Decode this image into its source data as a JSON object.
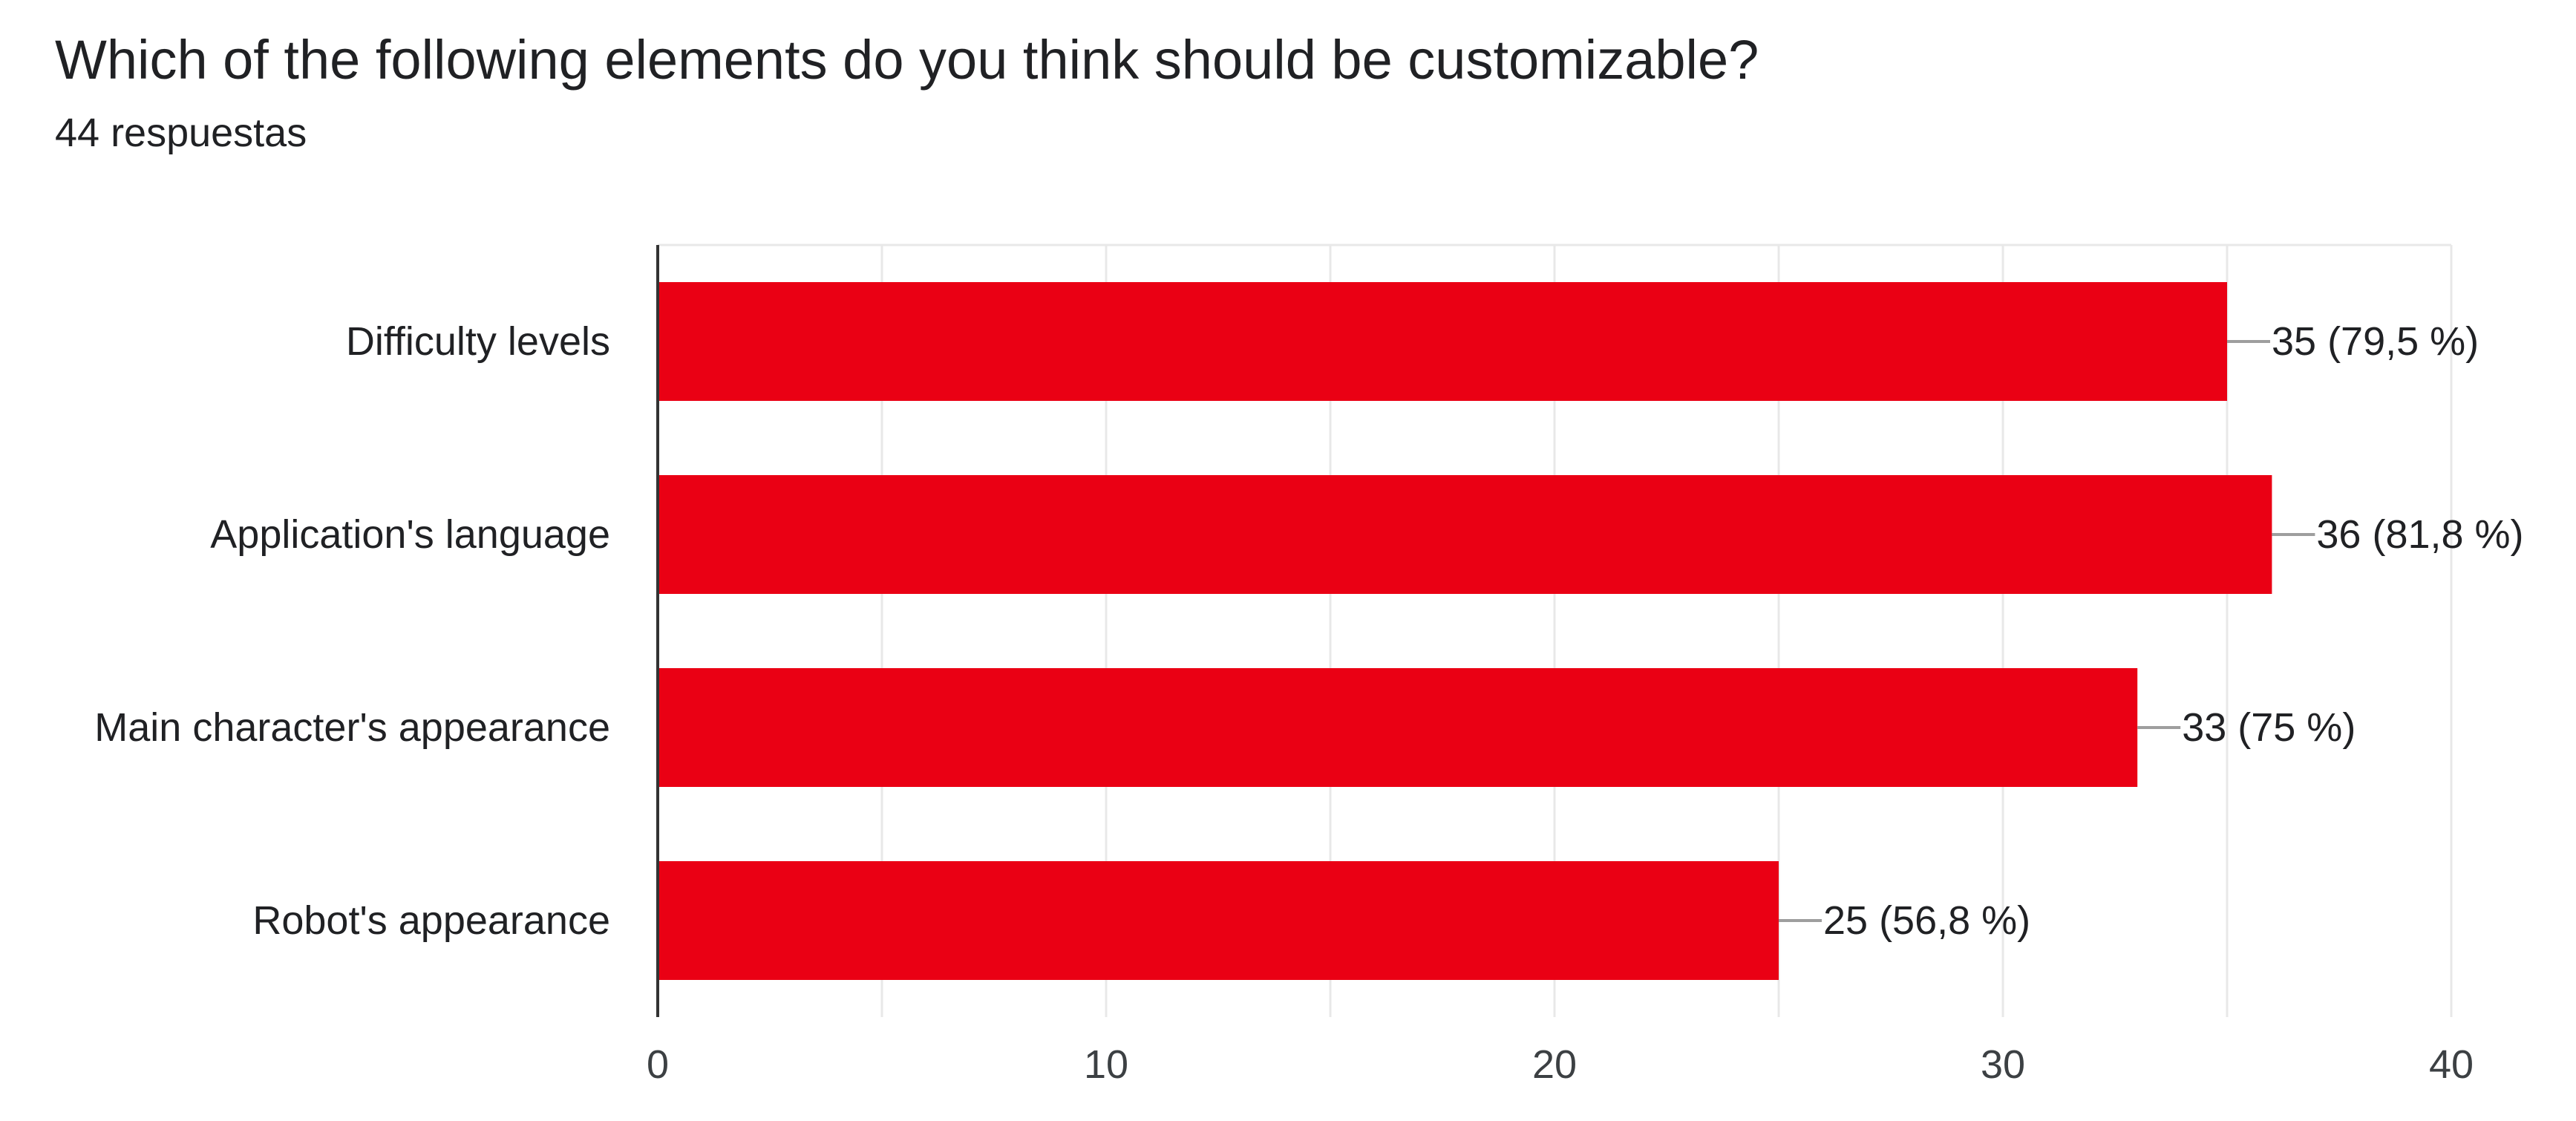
{
  "title": "Which of the following elements do you think should be customizable?",
  "subtitle": "44 respuestas",
  "colors": {
    "bar": "#ea0014",
    "text": "#202124",
    "axis_text": "#3c4043",
    "grid": "#e8e8e8",
    "axis_line": "#333333",
    "leader": "#9e9e9e"
  },
  "chart_data": {
    "type": "bar",
    "orientation": "horizontal",
    "categories": [
      "Difficulty levels",
      "Application's language",
      "Main character's appearance",
      "Robot's appearance"
    ],
    "values": [
      35,
      36,
      33,
      25
    ],
    "data_labels": [
      "35 (79,5 %)",
      "36 (81,8 %)",
      "33 (75 %)",
      "25 (56,8 %)"
    ],
    "xlim": [
      0,
      40
    ],
    "xticks": [
      0,
      10,
      20,
      30,
      40
    ],
    "grid": true,
    "legend": "none"
  }
}
